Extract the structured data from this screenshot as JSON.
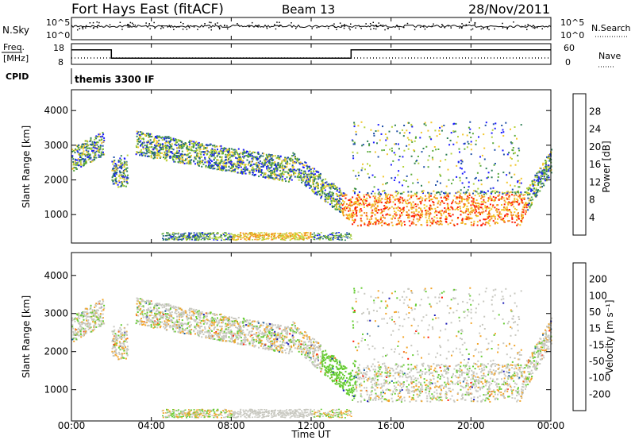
{
  "header": {
    "station": "Fort Hays East (fitACF)",
    "beam": "Beam 13",
    "date": "28/Nov/2011"
  },
  "chart_data": [
    {
      "type": "line",
      "name": "noise-panel",
      "left_label": "N.Sky",
      "right_label": "N.Search",
      "left_ticks": [
        "10^5",
        "10^0"
      ],
      "right_ticks": [
        "10^5",
        "10^0"
      ]
    },
    {
      "type": "line",
      "name": "frequency-panel",
      "left_label_line1": "Freq.",
      "left_label_line2": "[MHz]",
      "right_label": "Nave",
      "left_ticks": [
        18,
        8
      ],
      "right_ticks": [
        60,
        0
      ],
      "freq_steps": [
        {
          "t": 0,
          "v": 15
        },
        {
          "t": 2,
          "v": 15
        },
        {
          "t": 2,
          "v": 11
        },
        {
          "t": 14,
          "v": 11
        },
        {
          "t": 14,
          "v": 15
        },
        {
          "t": 24,
          "v": 15
        }
      ],
      "cpid_label": "CPID",
      "cpid_value": "themis 3300 IF"
    },
    {
      "type": "heatmap",
      "name": "power-panel",
      "ylabel": "Slant Range [km]",
      "yticks": [
        1000,
        2000,
        3000,
        4000
      ],
      "ylim": [
        180,
        4600
      ],
      "colorbar_label": "Power [dB]",
      "colorbar_ticks": [
        4,
        8,
        12,
        16,
        20,
        24,
        28
      ],
      "colorbar_colors": [
        "#1a1aff",
        "#1e4fa8",
        "#2e7f55",
        "#5aaa3a",
        "#b5d23b",
        "#f2c62a",
        "#f28a1e",
        "#ff1a00"
      ]
    },
    {
      "type": "heatmap",
      "name": "velocity-panel",
      "ylabel": "Slant Range [km]",
      "yticks": [
        1000,
        2000,
        3000,
        4000
      ],
      "ylim": [
        180,
        4600
      ],
      "colorbar_label": "Velocity [m s⁻¹]",
      "colorbar_ticks": [
        200,
        100,
        50,
        15,
        -15,
        -50,
        -100,
        -200
      ],
      "colorbar_colors": [
        "#1a1ab5",
        "#1f5fa0",
        "#2e8a3a",
        "#66cc33",
        "#c8c8c0",
        "#f2a52a",
        "#f2701e",
        "#ff5a10",
        "#ff1a00"
      ]
    }
  ],
  "time_axis": {
    "label": "Time UT",
    "ticks": [
      "00:00",
      "04:00",
      "08:00",
      "12:00",
      "16:00",
      "20:00",
      "00:00"
    ]
  }
}
